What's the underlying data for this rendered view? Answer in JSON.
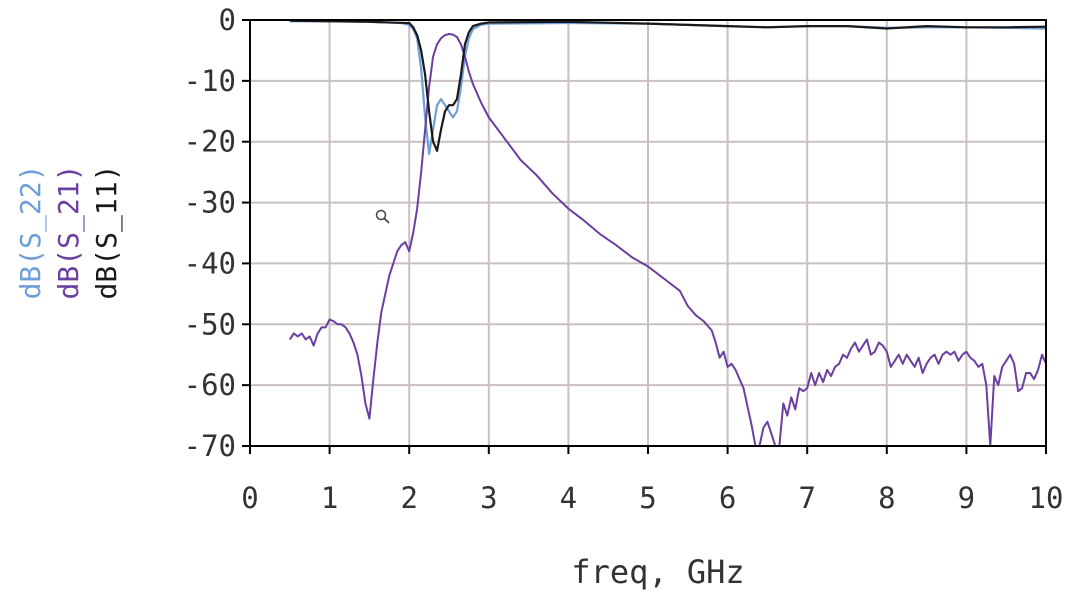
{
  "chart_data": {
    "type": "line",
    "title": "",
    "xlabel": "freq, GHz",
    "ylabels": [
      "dB(S_22)",
      "dB(S_21)",
      "dB(S_11)"
    ],
    "xlim": [
      0,
      10
    ],
    "ylim": [
      -70,
      0
    ],
    "xticks": [
      0,
      1,
      2,
      3,
      4,
      5,
      6,
      7,
      8,
      9,
      10
    ],
    "yticks": [
      0,
      -10,
      -20,
      -30,
      -40,
      -50,
      -60,
      -70
    ],
    "xtick_labels": [
      "0",
      "1",
      "2",
      "3",
      "4",
      "5",
      "6",
      "7",
      "8",
      "9",
      "10"
    ],
    "ytick_labels": [
      "0",
      "-10",
      "-20",
      "-30",
      "-40",
      "-50",
      "-60",
      "-70"
    ],
    "grid": true,
    "series": [
      {
        "name": "dB(S_22)",
        "color": "#6f9fd8",
        "points": [
          [
            0.5,
            -0.2
          ],
          [
            1.0,
            -0.2
          ],
          [
            1.5,
            -0.3
          ],
          [
            1.9,
            -0.5
          ],
          [
            2.0,
            -0.8
          ],
          [
            2.05,
            -1.5
          ],
          [
            2.1,
            -3
          ],
          [
            2.15,
            -8
          ],
          [
            2.2,
            -16
          ],
          [
            2.25,
            -22
          ],
          [
            2.3,
            -18
          ],
          [
            2.35,
            -14
          ],
          [
            2.4,
            -13
          ],
          [
            2.45,
            -14
          ],
          [
            2.5,
            -15
          ],
          [
            2.55,
            -16
          ],
          [
            2.6,
            -15
          ],
          [
            2.65,
            -11
          ],
          [
            2.7,
            -6
          ],
          [
            2.75,
            -3
          ],
          [
            2.8,
            -1.5
          ],
          [
            2.9,
            -0.8
          ],
          [
            3.0,
            -0.6
          ],
          [
            4.0,
            -0.5
          ],
          [
            5.0,
            -0.6
          ],
          [
            6.0,
            -1.0
          ],
          [
            6.5,
            -1.2
          ],
          [
            7.0,
            -1.0
          ],
          [
            7.5,
            -1.0
          ],
          [
            8.0,
            -1.3
          ],
          [
            8.5,
            -1.2
          ],
          [
            9.0,
            -1.2
          ],
          [
            9.5,
            -1.3
          ],
          [
            10.0,
            -1.4
          ]
        ]
      },
      {
        "name": "dB(S_21)",
        "color": "#6a3fa0",
        "points": [
          [
            0.5,
            -52.5
          ],
          [
            0.55,
            -51.5
          ],
          [
            0.6,
            -52
          ],
          [
            0.65,
            -51.5
          ],
          [
            0.7,
            -52.5
          ],
          [
            0.75,
            -52
          ],
          [
            0.8,
            -53.5
          ],
          [
            0.85,
            -51.5
          ],
          [
            0.9,
            -50.5
          ],
          [
            0.95,
            -50.5
          ],
          [
            1.0,
            -49.2
          ],
          [
            1.05,
            -49.5
          ],
          [
            1.1,
            -50
          ],
          [
            1.15,
            -50
          ],
          [
            1.2,
            -50.5
          ],
          [
            1.25,
            -51.5
          ],
          [
            1.3,
            -53
          ],
          [
            1.35,
            -55
          ],
          [
            1.4,
            -58.5
          ],
          [
            1.45,
            -63
          ],
          [
            1.5,
            -65.5
          ],
          [
            1.55,
            -59
          ],
          [
            1.6,
            -53
          ],
          [
            1.65,
            -48
          ],
          [
            1.7,
            -45
          ],
          [
            1.75,
            -42
          ],
          [
            1.8,
            -40
          ],
          [
            1.85,
            -38
          ],
          [
            1.9,
            -37
          ],
          [
            1.95,
            -36.5
          ],
          [
            2.0,
            -38
          ],
          [
            2.05,
            -35
          ],
          [
            2.1,
            -31
          ],
          [
            2.15,
            -25
          ],
          [
            2.2,
            -18
          ],
          [
            2.25,
            -11
          ],
          [
            2.3,
            -6
          ],
          [
            2.35,
            -4
          ],
          [
            2.4,
            -3
          ],
          [
            2.45,
            -2.5
          ],
          [
            2.5,
            -2.3
          ],
          [
            2.55,
            -2.4
          ],
          [
            2.6,
            -2.8
          ],
          [
            2.65,
            -4
          ],
          [
            2.7,
            -6
          ],
          [
            2.75,
            -8.5
          ],
          [
            2.8,
            -10.5
          ],
          [
            2.9,
            -13.5
          ],
          [
            3.0,
            -16
          ],
          [
            3.2,
            -19.5
          ],
          [
            3.4,
            -23
          ],
          [
            3.6,
            -25.5
          ],
          [
            3.8,
            -28.5
          ],
          [
            4.0,
            -31
          ],
          [
            4.2,
            -33
          ],
          [
            4.4,
            -35.2
          ],
          [
            4.6,
            -37
          ],
          [
            4.8,
            -39
          ],
          [
            5.0,
            -40.5
          ],
          [
            5.2,
            -42.5
          ],
          [
            5.4,
            -44.5
          ],
          [
            5.5,
            -47
          ],
          [
            5.6,
            -48.5
          ],
          [
            5.7,
            -49.5
          ],
          [
            5.8,
            -51
          ],
          [
            5.85,
            -53
          ],
          [
            5.9,
            -55.5
          ],
          [
            5.95,
            -54.5
          ],
          [
            6.0,
            -57
          ],
          [
            6.05,
            -56.5
          ],
          [
            6.1,
            -57.5
          ],
          [
            6.15,
            -59
          ],
          [
            6.2,
            -60.5
          ],
          [
            6.25,
            -63.5
          ],
          [
            6.3,
            -66.5
          ],
          [
            6.35,
            -70
          ],
          [
            6.4,
            -70
          ],
          [
            6.45,
            -67
          ],
          [
            6.5,
            -66
          ],
          [
            6.55,
            -68
          ],
          [
            6.6,
            -70
          ],
          [
            6.65,
            -70
          ],
          [
            6.7,
            -63
          ],
          [
            6.75,
            -65
          ],
          [
            6.8,
            -62
          ],
          [
            6.85,
            -64
          ],
          [
            6.9,
            -60.5
          ],
          [
            6.95,
            -61
          ],
          [
            7.0,
            -60.5
          ],
          [
            7.05,
            -58
          ],
          [
            7.1,
            -60
          ],
          [
            7.15,
            -58
          ],
          [
            7.2,
            -59.5
          ],
          [
            7.25,
            -57.5
          ],
          [
            7.3,
            -58.5
          ],
          [
            7.35,
            -57
          ],
          [
            7.4,
            -56.5
          ],
          [
            7.45,
            -55
          ],
          [
            7.5,
            -55.5
          ],
          [
            7.55,
            -54
          ],
          [
            7.6,
            -53
          ],
          [
            7.65,
            -54.5
          ],
          [
            7.7,
            -53.5
          ],
          [
            7.75,
            -52.5
          ],
          [
            7.8,
            -55
          ],
          [
            7.85,
            -54.5
          ],
          [
            7.9,
            -53
          ],
          [
            7.95,
            -53.5
          ],
          [
            8.0,
            -54.5
          ],
          [
            8.05,
            -57
          ],
          [
            8.1,
            -56
          ],
          [
            8.15,
            -55
          ],
          [
            8.2,
            -56.5
          ],
          [
            8.25,
            -55
          ],
          [
            8.3,
            -56
          ],
          [
            8.35,
            -57
          ],
          [
            8.4,
            -55.5
          ],
          [
            8.45,
            -58
          ],
          [
            8.5,
            -56.5
          ],
          [
            8.55,
            -55.5
          ],
          [
            8.6,
            -55
          ],
          [
            8.65,
            -56.5
          ],
          [
            8.7,
            -55
          ],
          [
            8.75,
            -54.5
          ],
          [
            8.8,
            -55
          ],
          [
            8.85,
            -54.5
          ],
          [
            8.9,
            -56
          ],
          [
            8.95,
            -55
          ],
          [
            9.0,
            -54.5
          ],
          [
            9.05,
            -55.5
          ],
          [
            9.1,
            -56
          ],
          [
            9.15,
            -57
          ],
          [
            9.2,
            -56.5
          ],
          [
            9.25,
            -60
          ],
          [
            9.3,
            -70
          ],
          [
            9.35,
            -58.5
          ],
          [
            9.4,
            -60
          ],
          [
            9.45,
            -57
          ],
          [
            9.5,
            -56
          ],
          [
            9.55,
            -55
          ],
          [
            9.6,
            -56.5
          ],
          [
            9.65,
            -61
          ],
          [
            9.7,
            -60.5
          ],
          [
            9.75,
            -58
          ],
          [
            9.8,
            -58
          ],
          [
            9.85,
            -59
          ],
          [
            9.9,
            -57.5
          ],
          [
            9.95,
            -55
          ],
          [
            10.0,
            -56.5
          ]
        ]
      },
      {
        "name": "dB(S_11)",
        "color": "#1a1a1a",
        "points": [
          [
            0.5,
            -0.1
          ],
          [
            1.0,
            -0.2
          ],
          [
            1.5,
            -0.3
          ],
          [
            2.0,
            -0.5
          ],
          [
            2.05,
            -1.2
          ],
          [
            2.1,
            -2.5
          ],
          [
            2.15,
            -5
          ],
          [
            2.2,
            -9
          ],
          [
            2.25,
            -15
          ],
          [
            2.3,
            -20
          ],
          [
            2.35,
            -21.5
          ],
          [
            2.4,
            -18
          ],
          [
            2.45,
            -15
          ],
          [
            2.5,
            -14
          ],
          [
            2.55,
            -14
          ],
          [
            2.6,
            -13
          ],
          [
            2.65,
            -9
          ],
          [
            2.7,
            -4
          ],
          [
            2.75,
            -2
          ],
          [
            2.8,
            -1
          ],
          [
            2.9,
            -0.6
          ],
          [
            3.0,
            -0.4
          ],
          [
            4.0,
            -0.3
          ],
          [
            5.0,
            -0.6
          ],
          [
            6.0,
            -1.0
          ],
          [
            6.5,
            -1.2
          ],
          [
            7.0,
            -1.0
          ],
          [
            7.5,
            -1.0
          ],
          [
            8.0,
            -1.4
          ],
          [
            8.5,
            -1.0
          ],
          [
            9.0,
            -1.2
          ],
          [
            9.5,
            -1.2
          ],
          [
            10.0,
            -1.1
          ]
        ]
      }
    ]
  }
}
